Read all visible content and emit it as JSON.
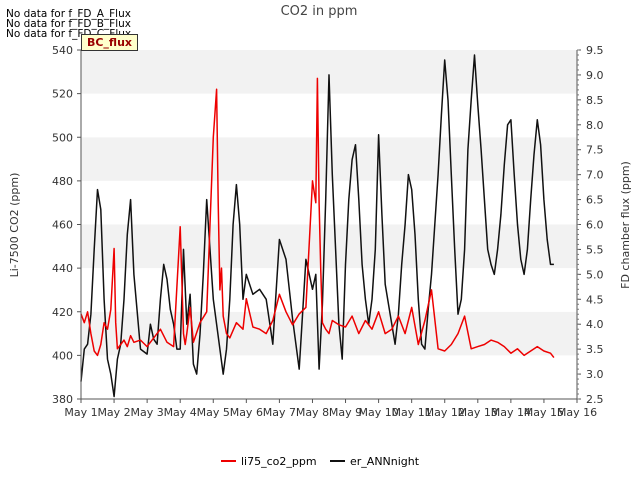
{
  "no_data_messages": [
    "No data for f_FD_A_Flux",
    "No data for f_FD_B_Flux",
    "No data for f_FD_C_Flux"
  ],
  "bc_label": "BC_flux",
  "colors": {
    "li75": "#ee0000",
    "er_ANNnight": "#111111",
    "band": "#f2f2f2"
  },
  "chart_data": {
    "type": "line",
    "title": "CO2 in ppm",
    "ylabel": "Li-7500 CO2 (ppm)",
    "y2label": "FD chamber flux (ppm)",
    "xlabel": "",
    "categories": [
      "May 1",
      "May 2",
      "May 3",
      "May 4",
      "May 5",
      "May 6",
      "May 7",
      "May 8",
      "May 9",
      "May 10",
      "May 11",
      "May 12",
      "May 13",
      "May 14",
      "May 15",
      "May 16"
    ],
    "xlim": [
      1,
      16
    ],
    "ylim": [
      380,
      540
    ],
    "y_ticks": [
      380,
      400,
      420,
      440,
      460,
      480,
      500,
      520,
      540
    ],
    "y2lim": [
      2.5,
      9.5
    ],
    "y2_ticks": [
      2.5,
      3.0,
      3.5,
      4.0,
      4.5,
      5.0,
      5.5,
      6.0,
      6.5,
      7.0,
      7.5,
      8.0,
      8.5,
      9.0,
      9.5
    ],
    "y2_tick_labels": [
      "2.5",
      "3.0",
      "3.5",
      "4.0",
      "4.5",
      "5.0",
      "5.5",
      "6.0",
      "6.5",
      "7.0",
      "7.5",
      "8.0",
      "8.5",
      "9.0",
      "9.5"
    ],
    "legend_position": "bottom-center",
    "grid": "horizontal bands",
    "series": [
      {
        "name": "li75_co2_ppm",
        "axis": "left",
        "x": [
          1.0,
          1.1,
          1.2,
          1.3,
          1.4,
          1.5,
          1.6,
          1.7,
          1.8,
          1.9,
          2.0,
          2.05,
          2.1,
          2.2,
          2.3,
          2.4,
          2.5,
          2.6,
          2.8,
          3.0,
          3.2,
          3.4,
          3.6,
          3.8,
          4.0,
          4.1,
          4.15,
          4.2,
          4.3,
          4.4,
          4.6,
          4.8,
          5.0,
          5.1,
          5.15,
          5.2,
          5.25,
          5.3,
          5.4,
          5.5,
          5.7,
          5.9,
          6.0,
          6.2,
          6.4,
          6.6,
          6.8,
          7.0,
          7.2,
          7.4,
          7.6,
          7.8,
          8.0,
          8.1,
          8.15,
          8.2,
          8.25,
          8.3,
          8.4,
          8.5,
          8.6,
          8.8,
          9.0,
          9.2,
          9.4,
          9.6,
          9.8,
          10.0,
          10.2,
          10.4,
          10.6,
          10.8,
          11.0,
          11.2,
          11.4,
          11.6,
          11.8,
          12.0,
          12.2,
          12.4,
          12.6,
          12.8,
          13.0,
          13.2,
          13.4,
          13.6,
          13.8,
          14.0,
          14.2,
          14.4,
          14.6,
          14.8,
          15.0,
          15.2,
          15.3
        ],
        "y": [
          419,
          415,
          420,
          410,
          402,
          400,
          405,
          415,
          412,
          421,
          449,
          415,
          403,
          405,
          407,
          404,
          409,
          406,
          407,
          404,
          408,
          412,
          406,
          404,
          459,
          410,
          405,
          410,
          422,
          406,
          415,
          420,
          500,
          522,
          470,
          430,
          440,
          418,
          410,
          408,
          415,
          412,
          426,
          413,
          412,
          410,
          416,
          428,
          420,
          414,
          419,
          422,
          480,
          470,
          527,
          470,
          440,
          415,
          412,
          410,
          416,
          414,
          413,
          418,
          410,
          416,
          412,
          420,
          410,
          412,
          418,
          410,
          422,
          405,
          416,
          430,
          403,
          402,
          405,
          410,
          418,
          403,
          404,
          405,
          407,
          406,
          404,
          401,
          403,
          400,
          402,
          404,
          402,
          401,
          399
        ]
      },
      {
        "name": "er_ANNnight",
        "axis": "right",
        "x": [
          1.0,
          1.1,
          1.2,
          1.3,
          1.4,
          1.5,
          1.6,
          1.7,
          1.8,
          1.9,
          2.0,
          2.1,
          2.2,
          2.3,
          2.4,
          2.5,
          2.6,
          2.8,
          3.0,
          3.1,
          3.2,
          3.3,
          3.4,
          3.5,
          3.6,
          3.7,
          3.8,
          3.9,
          4.0,
          4.1,
          4.2,
          4.3,
          4.4,
          4.5,
          4.6,
          4.7,
          4.8,
          4.9,
          5.0,
          5.1,
          5.2,
          5.3,
          5.4,
          5.5,
          5.6,
          5.7,
          5.8,
          5.9,
          6.0,
          6.2,
          6.4,
          6.6,
          6.8,
          7.0,
          7.2,
          7.4,
          7.6,
          7.8,
          8.0,
          8.1,
          8.2,
          8.3,
          8.4,
          8.5,
          8.6,
          8.7,
          8.8,
          8.9,
          9.0,
          9.1,
          9.2,
          9.3,
          9.4,
          9.5,
          9.6,
          9.7,
          9.8,
          9.9,
          10.0,
          10.1,
          10.2,
          10.3,
          10.4,
          10.5,
          10.6,
          10.7,
          10.8,
          10.9,
          11.0,
          11.1,
          11.2,
          11.3,
          11.4,
          11.5,
          11.6,
          11.7,
          11.8,
          11.9,
          12.0,
          12.1,
          12.2,
          12.3,
          12.4,
          12.5,
          12.6,
          12.7,
          12.8,
          12.9,
          13.0,
          13.1,
          13.2,
          13.3,
          13.4,
          13.5,
          13.6,
          13.7,
          13.8,
          13.9,
          14.0,
          14.1,
          14.2,
          14.3,
          14.4,
          14.5,
          14.6,
          14.7,
          14.8,
          14.9,
          15.0,
          15.1,
          15.2,
          15.3
        ],
        "y": [
          2.85,
          3.5,
          3.6,
          4.2,
          5.5,
          6.7,
          6.3,
          4.5,
          3.3,
          3.0,
          2.55,
          3.3,
          3.6,
          4.5,
          5.8,
          6.5,
          5.0,
          3.5,
          3.4,
          4.0,
          3.7,
          3.6,
          4.5,
          5.2,
          4.9,
          4.3,
          4.0,
          3.5,
          3.5,
          5.5,
          4.0,
          4.6,
          3.2,
          3.0,
          3.8,
          5.0,
          6.5,
          5.5,
          4.5,
          4.0,
          3.5,
          3.0,
          3.5,
          4.5,
          6.0,
          6.8,
          6.0,
          4.5,
          5.0,
          4.6,
          4.7,
          4.5,
          3.6,
          5.7,
          5.3,
          4.1,
          3.1,
          5.3,
          4.7,
          5.0,
          3.1,
          4.4,
          6.5,
          9.0,
          7.0,
          5.5,
          4.0,
          3.3,
          5.2,
          6.5,
          7.3,
          7.6,
          6.5,
          5.2,
          4.5,
          4.0,
          4.5,
          5.5,
          7.8,
          6.2,
          4.8,
          4.4,
          4.0,
          3.6,
          4.2,
          5.2,
          6.0,
          7.0,
          6.7,
          5.8,
          4.5,
          3.6,
          3.5,
          4.3,
          5.0,
          6.0,
          7.0,
          8.2,
          9.3,
          8.5,
          7.0,
          5.5,
          4.2,
          4.5,
          5.5,
          7.5,
          8.5,
          9.4,
          8.4,
          7.5,
          6.5,
          5.5,
          5.2,
          5.0,
          5.5,
          6.2,
          7.2,
          8.0,
          8.1,
          7.0,
          6.0,
          5.3,
          5.0,
          5.5,
          6.5,
          7.4,
          8.1,
          7.6,
          6.5,
          5.7,
          5.2,
          5.2
        ]
      }
    ]
  }
}
